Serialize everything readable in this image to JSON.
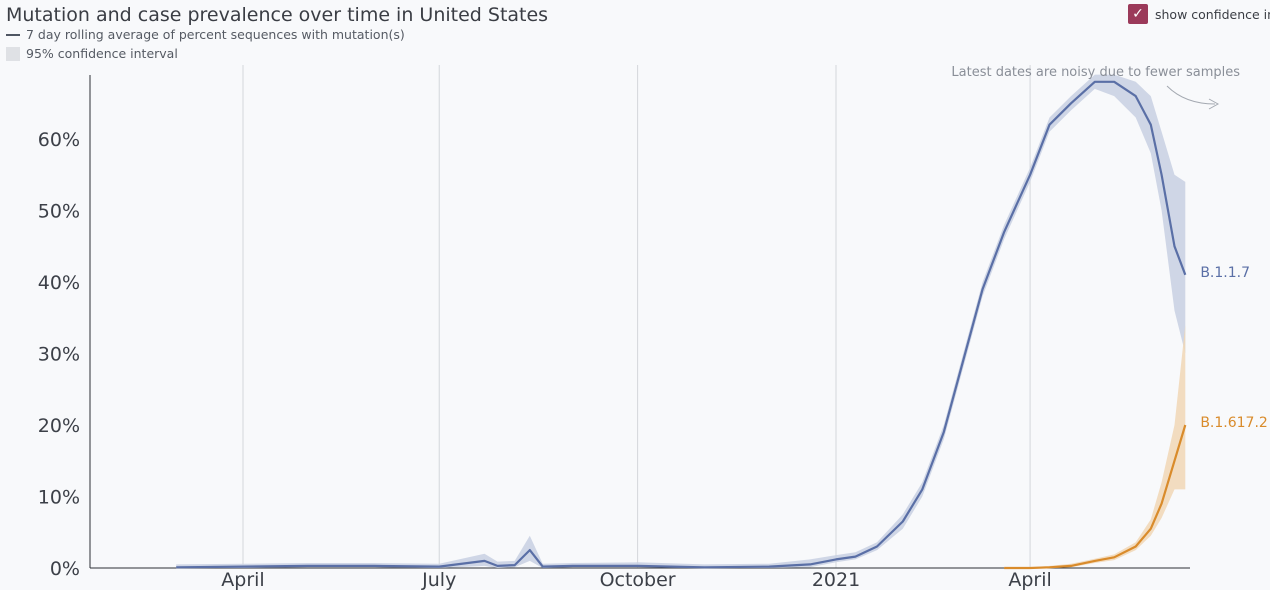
{
  "header": {
    "title": "Mutation and case prevalence over time in United States",
    "legend_line": "7 day rolling average of percent sequences with mutation(s)",
    "legend_band": "95% confidence interval",
    "toggle_label": "show confidence in",
    "toggle_checked": true
  },
  "colors": {
    "B117": "#5a6fa6",
    "B117_band": "#c8d0e2",
    "B16172": "#d98b2b",
    "B16172_band": "#f1d7b5",
    "checkbox": "#9b3a5a"
  },
  "chart_data": {
    "type": "line",
    "title": "Mutation and case prevalence over time in United States",
    "xlabel": "",
    "ylabel": "",
    "x_ticks": [
      "April",
      "July",
      "October",
      "2021",
      "April"
    ],
    "y_ticks": [
      "0%",
      "10%",
      "20%",
      "30%",
      "40%",
      "50%",
      "60%"
    ],
    "ylim": [
      0,
      70
    ],
    "grid": "vertical gridlines at month ticks",
    "annotation": "Latest dates are noisy due to fewer samples",
    "series": [
      {
        "name": "B.1.1.7",
        "x": [
          "2020-03-01",
          "2020-04-01",
          "2020-05-01",
          "2020-06-01",
          "2020-07-01",
          "2020-07-22",
          "2020-07-28",
          "2020-08-05",
          "2020-08-12",
          "2020-08-18",
          "2020-09-01",
          "2020-10-01",
          "2020-11-01",
          "2020-12-01",
          "2020-12-20",
          "2021-01-01",
          "2021-01-10",
          "2021-01-20",
          "2021-02-01",
          "2021-02-10",
          "2021-02-20",
          "2021-03-01",
          "2021-03-10",
          "2021-03-20",
          "2021-04-01",
          "2021-04-10",
          "2021-04-20",
          "2021-05-01",
          "2021-05-10",
          "2021-05-20",
          "2021-05-27",
          "2021-06-01",
          "2021-06-07",
          "2021-06-12"
        ],
        "values": [
          0.1,
          0.2,
          0.3,
          0.3,
          0.2,
          1,
          0.3,
          0.4,
          2.5,
          0.2,
          0.3,
          0.3,
          0.1,
          0.2,
          0.5,
          1.2,
          1.6,
          3,
          6.5,
          11,
          19,
          29,
          39,
          47,
          55,
          62,
          65,
          68,
          68,
          66,
          62,
          55,
          45,
          41
        ],
        "ci_low": [
          0,
          0,
          0.1,
          0.1,
          0,
          0.3,
          0,
          0.1,
          1,
          0,
          0.1,
          0.1,
          0,
          0,
          0.1,
          0.8,
          1.2,
          2.5,
          5.5,
          10,
          18,
          28,
          38,
          46,
          54,
          61,
          64,
          67,
          66,
          63,
          58,
          50,
          36,
          30
        ],
        "ci_high": [
          0.5,
          0.6,
          0.7,
          0.7,
          0.6,
          2,
          0.9,
          1,
          4.5,
          0.6,
          0.7,
          0.8,
          0.5,
          0.6,
          1.2,
          1.8,
          2.2,
          3.6,
          7.5,
          12,
          20,
          30,
          40,
          48,
          56,
          63,
          66,
          69,
          69,
          68,
          66,
          61,
          55,
          54
        ]
      },
      {
        "name": "B.1.617.2",
        "x": [
          "2021-03-20",
          "2021-04-01",
          "2021-04-10",
          "2021-04-20",
          "2021-05-01",
          "2021-05-10",
          "2021-05-20",
          "2021-05-27",
          "2021-06-01",
          "2021-06-07",
          "2021-06-12"
        ],
        "values": [
          0,
          0,
          0.1,
          0.3,
          1,
          1.5,
          3,
          5.5,
          9,
          15,
          20
        ],
        "ci_low": [
          0,
          0,
          0,
          0.1,
          0.7,
          1.1,
          2.5,
          4.5,
          7,
          11,
          11
        ],
        "ci_high": [
          0.1,
          0.1,
          0.3,
          0.6,
          1.3,
          1.9,
          3.6,
          6.8,
          12,
          20,
          34
        ]
      }
    ]
  }
}
